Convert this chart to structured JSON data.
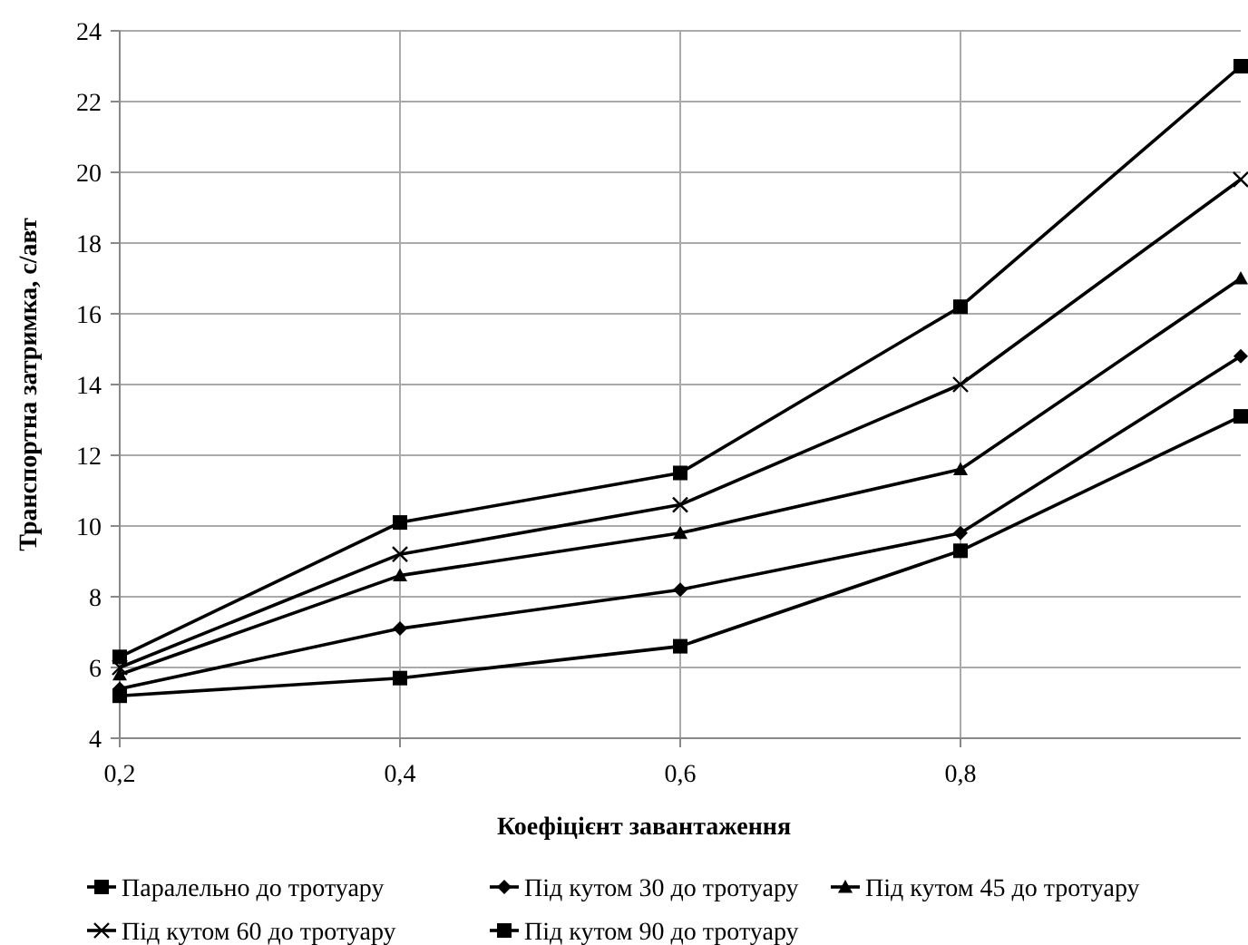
{
  "chart_data": {
    "type": "line",
    "xlabel": "Коефіцієнт завантаження",
    "ylabel": "Транспортна затримка, с/авт",
    "x": [
      0.2,
      0.4,
      0.6,
      0.8,
      1.0
    ],
    "xlim": [
      0.2,
      1.0
    ],
    "xticks": [
      {
        "value": 0.2,
        "label": "0,2"
      },
      {
        "value": 0.4,
        "label": "0,4"
      },
      {
        "value": 0.6,
        "label": "0,6"
      },
      {
        "value": 0.8,
        "label": "0,8"
      }
    ],
    "ylim": [
      4,
      24
    ],
    "yticks": [
      4,
      6,
      8,
      10,
      12,
      14,
      16,
      18,
      20,
      22,
      24
    ],
    "grid": true,
    "legend": "bottom",
    "line_style": "solid",
    "series": [
      {
        "name": "Паралельно до тротуару",
        "color": "#000000",
        "marker": "square",
        "values": [
          5.2,
          5.7,
          6.6,
          9.3,
          13.1
        ]
      },
      {
        "name": "Під кутом 30 до тротуару",
        "color": "#000000",
        "marker": "diamond",
        "values": [
          5.4,
          7.1,
          8.2,
          9.8,
          14.8
        ]
      },
      {
        "name": "Під кутом 45 до тротуару",
        "color": "#000000",
        "marker": "triangle",
        "values": [
          5.8,
          8.6,
          9.8,
          11.6,
          17.0
        ]
      },
      {
        "name": "Під кутом 60 до тротуару",
        "color": "#000000",
        "marker": "cross",
        "values": [
          6.0,
          9.2,
          10.6,
          14.0,
          19.8
        ]
      },
      {
        "name": "Під кутом 90 до тротуару",
        "color": "#000000",
        "marker": "square",
        "values": [
          6.3,
          10.1,
          11.5,
          16.2,
          23.0
        ]
      }
    ]
  }
}
